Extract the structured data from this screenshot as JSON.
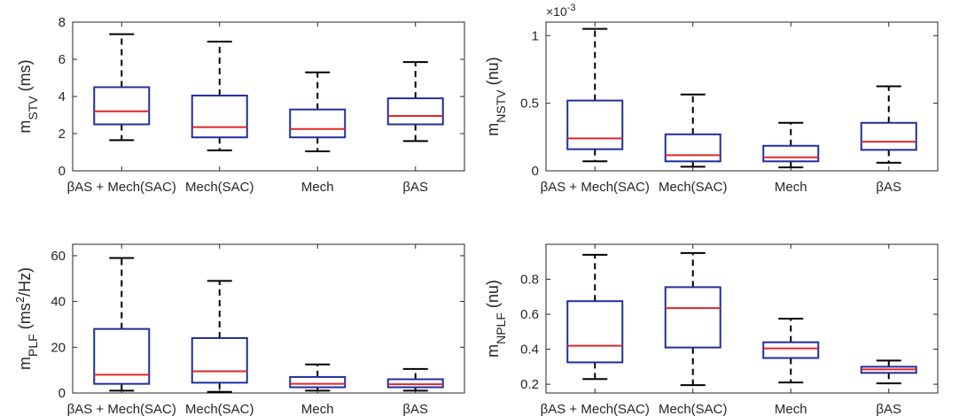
{
  "chart_data": [
    {
      "type": "box",
      "ylabel": {
        "main": "m",
        "sub": "STV",
        "unit": " (ms)"
      },
      "categories": [
        "βAS + Mech(SAC)",
        "Mech(SAC)",
        "Mech",
        "βAS"
      ],
      "ylim": [
        0,
        8
      ],
      "yticks": [
        0,
        2,
        4,
        6,
        8
      ],
      "ytick_labels": [
        "0",
        "2",
        "4",
        "6",
        "8"
      ],
      "exponent": null,
      "boxes": [
        {
          "min": 1.65,
          "q1": 2.5,
          "median": 3.2,
          "q3": 4.5,
          "max": 7.35
        },
        {
          "min": 1.1,
          "q1": 1.8,
          "median": 2.35,
          "q3": 4.05,
          "max": 6.95
        },
        {
          "min": 1.05,
          "q1": 1.8,
          "median": 2.25,
          "q3": 3.3,
          "max": 5.3
        },
        {
          "min": 1.6,
          "q1": 2.5,
          "median": 2.95,
          "q3": 3.9,
          "max": 5.85
        }
      ]
    },
    {
      "type": "box",
      "ylabel": {
        "main": "m",
        "sub": "NSTV",
        "unit": " (nu)"
      },
      "categories": [
        "βAS + Mech(SAC)",
        "Mech(SAC)",
        "Mech",
        "βAS"
      ],
      "ylim": [
        0,
        1.1
      ],
      "yticks": [
        0,
        0.5,
        1
      ],
      "ytick_labels": [
        "0",
        "0.5",
        "1"
      ],
      "exponent": "×10-3",
      "exponent_base": "×10",
      "exponent_power": "-3",
      "boxes": [
        {
          "min": 0.07,
          "q1": 0.16,
          "median": 0.24,
          "q3": 0.52,
          "max": 1.05
        },
        {
          "min": 0.03,
          "q1": 0.07,
          "median": 0.115,
          "q3": 0.27,
          "max": 0.565
        },
        {
          "min": 0.025,
          "q1": 0.07,
          "median": 0.1,
          "q3": 0.185,
          "max": 0.355
        },
        {
          "min": 0.06,
          "q1": 0.155,
          "median": 0.215,
          "q3": 0.355,
          "max": 0.625
        }
      ]
    },
    {
      "type": "box",
      "ylabel": {
        "main": "m",
        "sub": "PLF",
        "unit": " (ms",
        "sup": "2",
        "unit2": "/Hz)"
      },
      "categories": [
        "βAS + Mech(SAC)",
        "Mech(SAC)",
        "Mech",
        "βAS"
      ],
      "ylim": [
        0,
        65
      ],
      "yticks": [
        0,
        20,
        40,
        60
      ],
      "ytick_labels": [
        "0",
        "20",
        "40",
        "60"
      ],
      "exponent": null,
      "boxes": [
        {
          "min": 1.0,
          "q1": 4.0,
          "median": 8.0,
          "q3": 28.0,
          "max": 59.0
        },
        {
          "min": 0.5,
          "q1": 4.5,
          "median": 9.5,
          "q3": 24.0,
          "max": 49.0
        },
        {
          "min": 1.0,
          "q1": 2.5,
          "median": 4.0,
          "q3": 7.0,
          "max": 12.5
        },
        {
          "min": 1.0,
          "q1": 2.5,
          "median": 3.8,
          "q3": 6.0,
          "max": 10.5
        }
      ]
    },
    {
      "type": "box",
      "ylabel": {
        "main": "m",
        "sub": "NPLF",
        "unit": " (nu)"
      },
      "categories": [
        "βAS + Mech(SAC)",
        "Mech(SAC)",
        "Mech",
        "βAS"
      ],
      "ylim": [
        0.15,
        1.0
      ],
      "yticks": [
        0.2,
        0.4,
        0.6,
        0.8
      ],
      "ytick_labels": [
        "0.2",
        "0.4",
        "0.6",
        "0.8"
      ],
      "exponent": null,
      "boxes": [
        {
          "min": 0.23,
          "q1": 0.325,
          "median": 0.42,
          "q3": 0.675,
          "max": 0.94
        },
        {
          "min": 0.195,
          "q1": 0.41,
          "median": 0.635,
          "q3": 0.755,
          "max": 0.95
        },
        {
          "min": 0.21,
          "q1": 0.35,
          "median": 0.405,
          "q3": 0.44,
          "max": 0.575
        },
        {
          "min": 0.205,
          "q1": 0.265,
          "median": 0.285,
          "q3": 0.3,
          "max": 0.335
        }
      ]
    }
  ],
  "colors": {
    "box": "#1f2f9c",
    "median": "#e0262b",
    "whisker": "#000000",
    "axis": "#262626"
  }
}
